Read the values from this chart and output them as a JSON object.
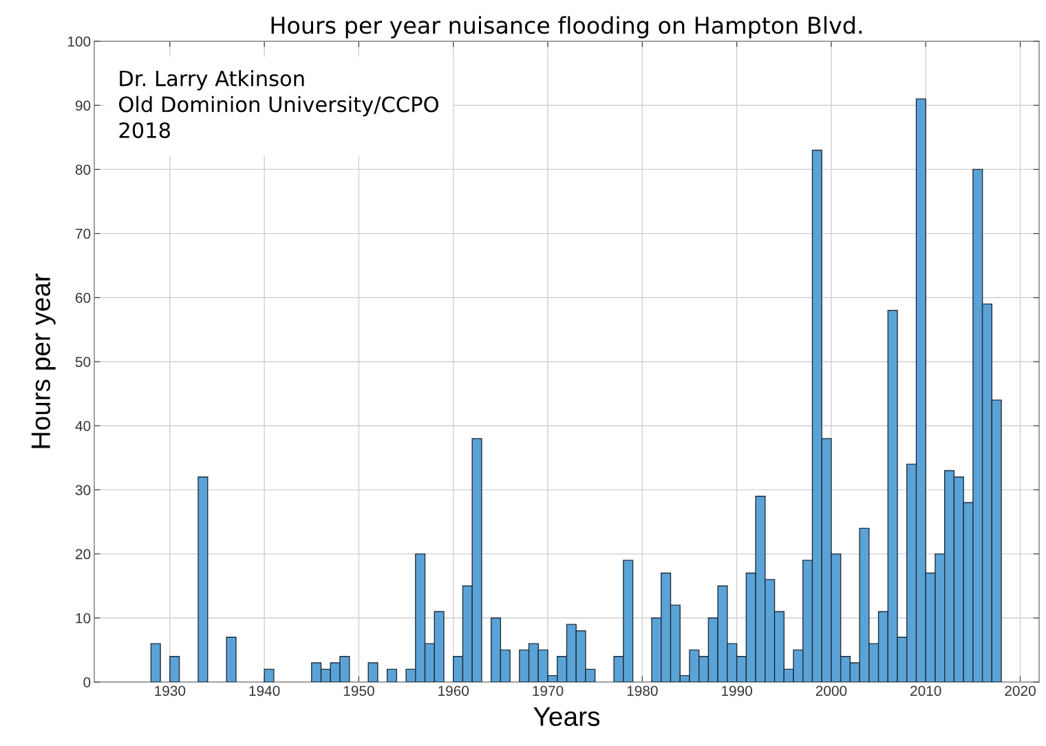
{
  "chart_data": {
    "type": "histogram",
    "title": "Hours per year nuisance flooding on Hampton Blvd.",
    "xlabel": "Years",
    "ylabel": "Hours per year",
    "annotations": [
      "Dr. Larry Atkinson\nOld Dominion University/CCPO\n2018"
    ],
    "bins": [
      1928,
      1929,
      1930,
      1931,
      1932,
      1933,
      1934,
      1935,
      1936,
      1937,
      1938,
      1939,
      1940,
      1941,
      1942,
      1943,
      1944,
      1945,
      1946,
      1947,
      1948,
      1949,
      1950,
      1951,
      1952,
      1953,
      1954,
      1955,
      1956,
      1957,
      1958,
      1959,
      1960,
      1961,
      1962,
      1963,
      1964,
      1965,
      1966,
      1967,
      1968,
      1969,
      1970,
      1971,
      1972,
      1973,
      1974,
      1975,
      1976,
      1977,
      1978,
      1979,
      1980,
      1981,
      1982,
      1983,
      1984,
      1985,
      1986,
      1987,
      1988,
      1989,
      1990,
      1991,
      1992,
      1993,
      1994,
      1995,
      1996,
      1997,
      1998,
      1999,
      2000,
      2001,
      2002,
      2003,
      2004,
      2005,
      2006,
      2007,
      2008,
      2009,
      2010,
      2011,
      2012,
      2013,
      2014,
      2015,
      2016,
      2017,
      2018
    ],
    "values": [
      6,
      0,
      4,
      0,
      0,
      32,
      0,
      0,
      7,
      0,
      0,
      0,
      2,
      0,
      0,
      0,
      0,
      3,
      2,
      3,
      4,
      0,
      0,
      3,
      0,
      2,
      0,
      2,
      20,
      6,
      11,
      0,
      4,
      15,
      38,
      0,
      10,
      5,
      0,
      5,
      6,
      5,
      1,
      4,
      9,
      8,
      2,
      0,
      0,
      4,
      19,
      0,
      0,
      10,
      17,
      12,
      1,
      5,
      4,
      10,
      15,
      6,
      4,
      17,
      29,
      16,
      11,
      2,
      5,
      19,
      83,
      38,
      20,
      4,
      3,
      24,
      6,
      11,
      58,
      7,
      34,
      91,
      17,
      20,
      33,
      32,
      28,
      80,
      59,
      44
    ],
    "color": "#5ba3d6",
    "xlim": [
      1922,
      2022
    ],
    "xticks": [
      1930,
      1940,
      1950,
      1960,
      1970,
      1980,
      1990,
      2000,
      2010,
      2020
    ],
    "ylim": [
      0,
      100
    ],
    "yticks": [
      0,
      10,
      20,
      30,
      40,
      50,
      60,
      70,
      80,
      90,
      100
    ],
    "grid": true
  }
}
